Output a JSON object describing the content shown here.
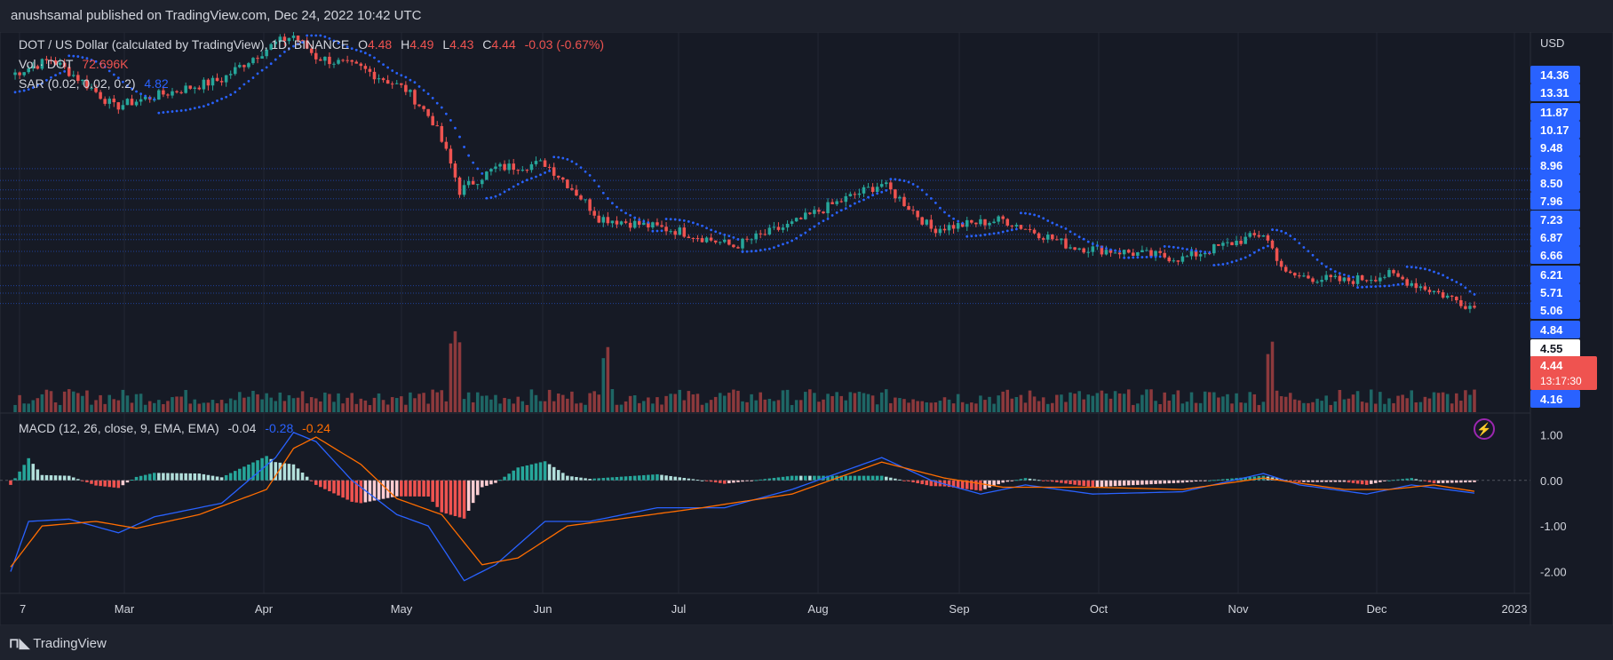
{
  "header": {
    "published": "anushsamal published on TradingView.com, Dec 24, 2022 10:42 UTC"
  },
  "legend": {
    "symbol": "DOT / US Dollar (calculated by TradingView), 1D, BINANCE",
    "o_label": "O",
    "o": "4.48",
    "h_label": "H",
    "h": "4.49",
    "l_label": "L",
    "l": "4.43",
    "c_label": "C",
    "c": "4.44",
    "change": "-0.03 (-0.67%)",
    "vol_label": "Vol · DOT",
    "vol": "72.696K",
    "sar_label": "SAR (0.02, 0.02, 0.2)",
    "sar": "4.82",
    "macd_label": "MACD (12, 26, close, 9, EMA, EMA)",
    "macd_hist": "-0.04",
    "macd_line": "-0.28",
    "macd_signal": "-0.24"
  },
  "price_axis": {
    "currency": "USD",
    "labels": [
      "14.36",
      "13.31",
      "11.87",
      "10.17",
      "9.48",
      "8.96",
      "8.50",
      "7.96",
      "7.23",
      "6.87",
      "6.66",
      "6.21",
      "5.71",
      "5.06",
      "4.84",
      "4.55",
      "4.44",
      "4.16"
    ],
    "current_price": "4.44",
    "countdown": "13:17:30"
  },
  "macd_axis": {
    "labels": [
      "1.00",
      "0.00",
      "-1.00",
      "-2.00"
    ]
  },
  "time_axis": {
    "labels": [
      "7",
      "Mar",
      "Apr",
      "May",
      "Jun",
      "Jul",
      "Aug",
      "Sep",
      "Oct",
      "Nov",
      "Dec",
      "2023"
    ]
  },
  "footer": {
    "brand": "TradingView"
  },
  "colors": {
    "up": "#26a69a",
    "down": "#ef5350",
    "sar": "#2962ff",
    "macd": "#2962ff",
    "signal": "#ff6d00",
    "bg": "#161a25",
    "accent": "#2962ff"
  },
  "chart_data": [
    {
      "type": "candlestick",
      "title": "DOT / US Dollar (calculated by TradingView), 1D, BINANCE",
      "ylabel": "USD",
      "ylim": [
        4.0,
        16.5
      ],
      "x_start": "2022-02-01",
      "x_end": "2022-12-24",
      "anchors": [
        {
          "date": "2022-02-01",
          "close": 17.8
        },
        {
          "date": "2022-02-10",
          "close": 19.5
        },
        {
          "date": "2022-02-24",
          "close": 14.7
        },
        {
          "date": "2022-03-10",
          "close": 16.2
        },
        {
          "date": "2022-03-20",
          "close": 17.3
        },
        {
          "date": "2022-04-01",
          "close": 21.5
        },
        {
          "date": "2022-04-05",
          "close": 22.5
        },
        {
          "date": "2022-04-10",
          "close": 19.8
        },
        {
          "date": "2022-04-20",
          "close": 18.5
        },
        {
          "date": "2022-04-30",
          "close": 16.3
        },
        {
          "date": "2022-05-06",
          "close": 13.5
        },
        {
          "date": "2022-05-12",
          "close": 8.9
        },
        {
          "date": "2022-05-20",
          "close": 10.2
        },
        {
          "date": "2022-05-31",
          "close": 10.5
        },
        {
          "date": "2022-06-12",
          "close": 7.6
        },
        {
          "date": "2022-06-18",
          "close": 7.4
        },
        {
          "date": "2022-06-30",
          "close": 7.0
        },
        {
          "date": "2022-07-12",
          "close": 6.4
        },
        {
          "date": "2022-07-25",
          "close": 7.3
        },
        {
          "date": "2022-08-14",
          "close": 9.3
        },
        {
          "date": "2022-08-25",
          "close": 7.1
        },
        {
          "date": "2022-09-10",
          "close": 7.5
        },
        {
          "date": "2022-09-25",
          "close": 6.4
        },
        {
          "date": "2022-10-20",
          "close": 5.95
        },
        {
          "date": "2022-11-07",
          "close": 6.9
        },
        {
          "date": "2022-11-12",
          "close": 5.4
        },
        {
          "date": "2022-11-25",
          "close": 5.2
        },
        {
          "date": "2022-12-05",
          "close": 5.4
        },
        {
          "date": "2022-12-24",
          "close": 4.44
        }
      ],
      "volume_spikes": [
        {
          "date": "2022-05-10"
        },
        {
          "date": "2022-05-11"
        },
        {
          "date": "2022-05-12"
        },
        {
          "date": "2022-06-13"
        },
        {
          "date": "2022-06-14"
        },
        {
          "date": "2022-11-08"
        },
        {
          "date": "2022-11-09"
        }
      ]
    },
    {
      "type": "line",
      "title": "MACD (12, 26, close, 9, EMA, EMA)",
      "ylim": [
        -2.4,
        1.3
      ],
      "series": [
        {
          "name": "MACD",
          "points": [
            [
              "2022-02-01",
              -2.0
            ],
            [
              "2022-02-05",
              -0.9
            ],
            [
              "2022-02-14",
              -0.85
            ],
            [
              "2022-02-25",
              -1.15
            ],
            [
              "2022-03-05",
              -0.8
            ],
            [
              "2022-03-20",
              -0.5
            ],
            [
              "2022-04-01",
              0.5
            ],
            [
              "2022-04-05",
              1.05
            ],
            [
              "2022-04-10",
              0.85
            ],
            [
              "2022-04-18",
              0.0
            ],
            [
              "2022-04-28",
              -0.75
            ],
            [
              "2022-05-05",
              -1.0
            ],
            [
              "2022-05-13",
              -2.2
            ],
            [
              "2022-05-20",
              -1.85
            ],
            [
              "2022-05-31",
              -0.9
            ],
            [
              "2022-06-10",
              -0.9
            ],
            [
              "2022-06-25",
              -0.6
            ],
            [
              "2022-07-10",
              -0.6
            ],
            [
              "2022-07-25",
              -0.2
            ],
            [
              "2022-08-14",
              0.5
            ],
            [
              "2022-08-25",
              0.0
            ],
            [
              "2022-09-05",
              -0.3
            ],
            [
              "2022-09-15",
              -0.1
            ],
            [
              "2022-09-30",
              -0.3
            ],
            [
              "2022-10-20",
              -0.25
            ],
            [
              "2022-11-07",
              0.15
            ],
            [
              "2022-11-15",
              -0.1
            ],
            [
              "2022-11-30",
              -0.3
            ],
            [
              "2022-12-10",
              -0.1
            ],
            [
              "2022-12-24",
              -0.28
            ]
          ]
        },
        {
          "name": "Signal",
          "points": [
            [
              "2022-02-01",
              -1.9
            ],
            [
              "2022-02-08",
              -1.0
            ],
            [
              "2022-02-20",
              -0.9
            ],
            [
              "2022-03-01",
              -1.05
            ],
            [
              "2022-03-15",
              -0.75
            ],
            [
              "2022-03-30",
              -0.2
            ],
            [
              "2022-04-05",
              0.7
            ],
            [
              "2022-04-10",
              0.95
            ],
            [
              "2022-04-20",
              0.35
            ],
            [
              "2022-04-28",
              -0.4
            ],
            [
              "2022-05-08",
              -0.75
            ],
            [
              "2022-05-17",
              -1.85
            ],
            [
              "2022-05-25",
              -1.7
            ],
            [
              "2022-06-05",
              -1.0
            ],
            [
              "2022-06-20",
              -0.8
            ],
            [
              "2022-07-05",
              -0.6
            ],
            [
              "2022-07-25",
              -0.3
            ],
            [
              "2022-08-14",
              0.4
            ],
            [
              "2022-08-28",
              0.05
            ],
            [
              "2022-09-10",
              -0.15
            ],
            [
              "2022-09-30",
              -0.15
            ],
            [
              "2022-10-20",
              -0.2
            ],
            [
              "2022-11-07",
              0.05
            ],
            [
              "2022-11-25",
              -0.2
            ],
            [
              "2022-12-05",
              -0.2
            ],
            [
              "2022-12-15",
              -0.1
            ],
            [
              "2022-12-24",
              -0.24
            ]
          ]
        }
      ]
    }
  ]
}
